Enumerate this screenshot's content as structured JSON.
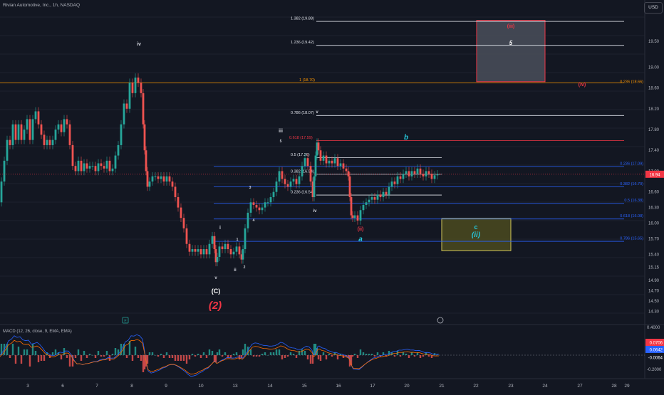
{
  "header": {
    "symbol_title": "Rivian Automotive, Inc., 1h, NASDAQ",
    "currency": "USD"
  },
  "macd": {
    "title": "MACD (12, 26, close, 9, EMA, EMA)",
    "axis": {
      "ticks": [
        "0.4000",
        "0.2000",
        "-0.2000"
      ]
    },
    "badges": [
      {
        "text": "0.0706",
        "bg": "#f23645"
      },
      {
        "text": "0.0642",
        "bg": "#2962ff"
      },
      {
        "text": "-0.0064",
        "bg": "#131722"
      }
    ]
  },
  "chart_data": {
    "type": "candlestick",
    "ylim": [
      14.2,
      20.1
    ],
    "y_ticks": [
      "19.50",
      "19.00",
      "18.60",
      "18.20",
      "17.80",
      "17.40",
      "17.00",
      "16.60",
      "16.30",
      "16.00",
      "15.70",
      "15.40",
      "15.15",
      "14.90",
      "14.70",
      "14.50",
      "14.30"
    ],
    "x_ticks": [
      "3",
      "6",
      "7",
      "8",
      "9",
      "10",
      "13",
      "14",
      "15",
      "16",
      "17",
      "20",
      "21",
      "22",
      "23",
      "24",
      "27",
      "28",
      "29"
    ],
    "last_price": {
      "value": 16.94,
      "label": "16.94"
    },
    "colors": {
      "up": "#26a69a",
      "down": "#ef5350",
      "fib": "#e0e3eb",
      "blue": "#2962ff",
      "red": "#f23645",
      "orange": "#ff9800",
      "teal": "#26c6da"
    },
    "price_path": [
      [
        0,
        16.4
      ],
      [
        4,
        16.8
      ],
      [
        8,
        17.2
      ],
      [
        12,
        17.6
      ],
      [
        16,
        17.5
      ],
      [
        20,
        17.9
      ],
      [
        24,
        17.6
      ],
      [
        28,
        17.9
      ],
      [
        32,
        17.6
      ],
      [
        36,
        17.8
      ],
      [
        40,
        18.0
      ],
      [
        44,
        17.6
      ],
      [
        48,
        18.0
      ],
      [
        52,
        18.15
      ],
      [
        56,
        17.9
      ],
      [
        60,
        17.7
      ],
      [
        64,
        17.5
      ],
      [
        68,
        17.6
      ],
      [
        72,
        17.5
      ],
      [
        76,
        17.6
      ],
      [
        80,
        17.8
      ],
      [
        84,
        17.9
      ],
      [
        88,
        17.75
      ],
      [
        92,
        18.0
      ],
      [
        96,
        17.9
      ],
      [
        100,
        17.5
      ],
      [
        104,
        17.1
      ],
      [
        108,
        17.0
      ],
      [
        112,
        17.2
      ],
      [
        116,
        17.0
      ],
      [
        120,
        17.15
      ],
      [
        124,
        17.05
      ],
      [
        128,
        17.1
      ],
      [
        132,
        17.1
      ],
      [
        136,
        17.0
      ],
      [
        140,
        17.15
      ],
      [
        144,
        17.1
      ],
      [
        148,
        17.05
      ],
      [
        152,
        17.2
      ],
      [
        156,
        17.0
      ],
      [
        160,
        17.05
      ],
      [
        164,
        17.3
      ],
      [
        168,
        17.5
      ],
      [
        172,
        17.9
      ],
      [
        176,
        18.3
      ],
      [
        180,
        18.2
      ],
      [
        184,
        18.7
      ],
      [
        188,
        18.5
      ],
      [
        192,
        18.8
      ],
      [
        196,
        18.7
      ],
      [
        200,
        18.5
      ],
      [
        202,
        17.9
      ],
      [
        204,
        17.4
      ],
      [
        206,
        17.0
      ],
      [
        208,
        16.7
      ],
      [
        212,
        16.8
      ],
      [
        216,
        16.9
      ],
      [
        220,
        16.9
      ],
      [
        224,
        16.85
      ],
      [
        228,
        16.9
      ],
      [
        232,
        16.8
      ],
      [
        236,
        16.9
      ],
      [
        240,
        16.8
      ],
      [
        244,
        16.7
      ],
      [
        248,
        16.5
      ],
      [
        252,
        16.3
      ],
      [
        256,
        16.1
      ],
      [
        260,
        15.9
      ],
      [
        264,
        15.6
      ],
      [
        268,
        15.45
      ],
      [
        272,
        15.5
      ],
      [
        276,
        15.45
      ],
      [
        280,
        15.5
      ],
      [
        284,
        15.4
      ],
      [
        288,
        15.5
      ],
      [
        292,
        15.4
      ],
      [
        296,
        15.6
      ],
      [
        300,
        15.75
      ],
      [
        302,
        15.5
      ],
      [
        304,
        15.25
      ],
      [
        306,
        15.35
      ],
      [
        310,
        15.55
      ],
      [
        314,
        15.5
      ],
      [
        318,
        15.6
      ],
      [
        322,
        15.5
      ],
      [
        326,
        15.4
      ],
      [
        330,
        15.45
      ],
      [
        334,
        15.55
      ],
      [
        338,
        15.4
      ],
      [
        340,
        15.3
      ],
      [
        342,
        15.5
      ],
      [
        346,
        15.9
      ],
      [
        350,
        16.2
      ],
      [
        354,
        16.4
      ],
      [
        358,
        16.35
      ],
      [
        362,
        16.3
      ],
      [
        366,
        16.25
      ],
      [
        370,
        16.3
      ],
      [
        374,
        16.4
      ],
      [
        378,
        16.4
      ],
      [
        382,
        16.5
      ],
      [
        386,
        16.6
      ],
      [
        390,
        16.8
      ],
      [
        394,
        17.0
      ],
      [
        398,
        16.85
      ],
      [
        402,
        16.75
      ],
      [
        406,
        16.7
      ],
      [
        410,
        16.8
      ],
      [
        414,
        16.85
      ],
      [
        418,
        16.75
      ],
      [
        422,
        16.9
      ],
      [
        426,
        17.1
      ],
      [
        430,
        17.25
      ],
      [
        434,
        17.1
      ],
      [
        438,
        16.8
      ],
      [
        440,
        16.5
      ],
      [
        442,
        16.9
      ],
      [
        444,
        17.3
      ],
      [
        446,
        17.55
      ],
      [
        448,
        17.4
      ],
      [
        452,
        17.2
      ],
      [
        456,
        17.3
      ],
      [
        460,
        17.15
      ],
      [
        464,
        17.2
      ],
      [
        468,
        17.15
      ],
      [
        472,
        17.25
      ],
      [
        476,
        17.1
      ],
      [
        480,
        17.15
      ],
      [
        484,
        17.05
      ],
      [
        488,
        17.0
      ],
      [
        490,
        16.9
      ],
      [
        492,
        16.5
      ],
      [
        494,
        16.15
      ],
      [
        496,
        16.1
      ],
      [
        500,
        16.15
      ],
      [
        504,
        16.05
      ],
      [
        508,
        16.25
      ],
      [
        512,
        16.35
      ],
      [
        516,
        16.4
      ],
      [
        520,
        16.45
      ],
      [
        524,
        16.5
      ],
      [
        528,
        16.45
      ],
      [
        532,
        16.55
      ],
      [
        536,
        16.5
      ],
      [
        540,
        16.6
      ],
      [
        544,
        16.55
      ],
      [
        548,
        16.7
      ],
      [
        552,
        16.8
      ],
      [
        556,
        16.75
      ],
      [
        560,
        16.9
      ],
      [
        564,
        16.85
      ],
      [
        568,
        16.95
      ],
      [
        572,
        17.0
      ],
      [
        576,
        16.9
      ],
      [
        580,
        17.0
      ],
      [
        584,
        16.95
      ],
      [
        588,
        17.05
      ],
      [
        592,
        16.95
      ],
      [
        596,
        16.9
      ],
      [
        600,
        17.0
      ],
      [
        604,
        16.95
      ],
      [
        608,
        16.85
      ],
      [
        612,
        16.92
      ],
      [
        616,
        16.94
      ]
    ],
    "fib_levels": [
      {
        "label": "1.382 (19.88)",
        "value": 19.88,
        "style": "white-long"
      },
      {
        "label": "1.236 (19.42)",
        "value": 19.42,
        "style": "white-long"
      },
      {
        "label": "0.786 (18.07)",
        "value": 18.07,
        "style": "white-long"
      },
      {
        "label": "0.5 (17.26)",
        "value": 17.26,
        "style": "white"
      },
      {
        "label": "0.382 (16.94)",
        "value": 16.94,
        "style": "white"
      },
      {
        "label": "0.236 (16.54)",
        "value": 16.54,
        "style": "white"
      },
      {
        "label": "0.618 (17.59)",
        "value": 17.59,
        "style": "red"
      },
      {
        "label": "1 (18.70)",
        "value": 18.7,
        "style": "orange"
      },
      {
        "label": "0.236 (18.66)",
        "value": 18.66,
        "style": "orange-right"
      },
      {
        "label": "0.236 (17.09)",
        "value": 17.09,
        "style": "blue"
      },
      {
        "label": "0.382 (16.70)",
        "value": 16.7,
        "style": "blue"
      },
      {
        "label": "0.5 (16.38)",
        "value": 16.38,
        "style": "blue"
      },
      {
        "label": "0.618 (16.08)",
        "value": 16.08,
        "style": "blue"
      },
      {
        "label": "0.786 (15.65)",
        "value": 15.65,
        "style": "blue"
      }
    ],
    "annotations": [
      {
        "text": "iv",
        "color": "#d1d4dc",
        "x": 195,
        "y": 64,
        "size": 7
      },
      {
        "text": "v",
        "color": "#d1d4dc",
        "x": 303,
        "y": 392,
        "size": 6
      },
      {
        "text": "(C)",
        "color": "#ffffff",
        "x": 303,
        "y": 412,
        "size": 9
      },
      {
        "text": "(2)",
        "color": "#f23645",
        "x": 302,
        "y": 434,
        "size": 15,
        "italic": true
      },
      {
        "text": "i",
        "color": "#d1d4dc",
        "x": 309,
        "y": 322,
        "size": 7
      },
      {
        "text": "ii",
        "color": "#d1d4dc",
        "x": 330,
        "y": 381,
        "size": 6
      },
      {
        "text": "1",
        "color": "#d1d4dc",
        "x": 333,
        "y": 338,
        "size": 5
      },
      {
        "text": "2",
        "color": "#d1d4dc",
        "x": 343,
        "y": 377,
        "size": 5
      },
      {
        "text": "3",
        "color": "#d1d4dc",
        "x": 351,
        "y": 265,
        "size": 5
      },
      {
        "text": "4",
        "color": "#d1d4dc",
        "x": 356,
        "y": 311,
        "size": 5
      },
      {
        "text": "5",
        "color": "#d1d4dc",
        "x": 394,
        "y": 200,
        "size": 5
      },
      {
        "text": "iii",
        "color": "#d1d4dc",
        "x": 394,
        "y": 186,
        "size": 7
      },
      {
        "text": "iv",
        "color": "#d1d4dc",
        "x": 442,
        "y": 298,
        "size": 6
      },
      {
        "text": "v",
        "color": "#d1d4dc",
        "x": 445,
        "y": 159,
        "size": 6
      },
      {
        "text": "b",
        "color": "#26c6da",
        "x": 570,
        "y": 196,
        "size": 10,
        "italic": true
      },
      {
        "text": "(ii)",
        "color": "#f23645",
        "x": 506,
        "y": 324,
        "size": 7
      },
      {
        "text": "a",
        "color": "#26c6da",
        "x": 506,
        "y": 339,
        "size": 10,
        "italic": true
      },
      {
        "text": "(iv)",
        "color": "#f23645",
        "x": 817,
        "y": 121,
        "size": 7
      },
      {
        "text": "c",
        "color": "#26c6da",
        "x": 668,
        "y": 322,
        "size": 9
      },
      {
        "text": "(ii)",
        "color": "#26c6da",
        "x": 668,
        "y": 333,
        "size": 10,
        "italic": true
      },
      {
        "text": "(iii)",
        "color": "#f23645",
        "x": 717,
        "y": 39,
        "size": 7
      },
      {
        "text": "5",
        "color": "#ffffff",
        "x": 717,
        "y": 63,
        "size": 8,
        "italic": true
      }
    ],
    "boxes": [
      {
        "name": "target-box-iii",
        "y1": 19.9,
        "y2": 18.72,
        "fill": "#4a4f5a",
        "stroke": "#f23645"
      },
      {
        "name": "target-box-ii",
        "y1": 16.09,
        "y2": 15.47,
        "fill": "#4b4a1f",
        "stroke": "#d4c95a"
      }
    ],
    "x_range": [
      0,
      905
    ]
  }
}
